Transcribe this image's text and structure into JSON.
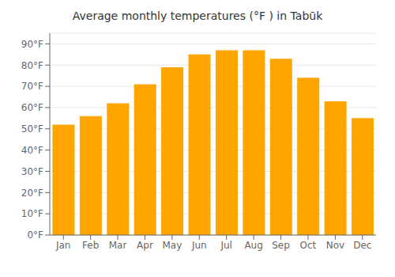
{
  "chart_data": {
    "type": "bar",
    "title": "Average monthly temperatures (°F ) in Tabūk",
    "categories": [
      "Jan",
      "Feb",
      "Mar",
      "Apr",
      "May",
      "Jun",
      "Jul",
      "Aug",
      "Sep",
      "Oct",
      "Nov",
      "Dec"
    ],
    "values": [
      52,
      56,
      62,
      71,
      79,
      85,
      87,
      87,
      83,
      74,
      63,
      55
    ],
    "color": "#FFA500",
    "ylim": [
      0,
      95
    ],
    "yticks": [
      {
        "value": 0,
        "label": "0°F"
      },
      {
        "value": 10,
        "label": "10°F"
      },
      {
        "value": 20,
        "label": "20°F"
      },
      {
        "value": 30,
        "label": "30°F"
      },
      {
        "value": 40,
        "label": "40°F"
      },
      {
        "value": 50,
        "label": "50°F"
      },
      {
        "value": 60,
        "label": "60°F"
      },
      {
        "value": 70,
        "label": "70°F"
      },
      {
        "value": 80,
        "label": "80°F"
      },
      {
        "value": 90,
        "label": "90°F"
      }
    ],
    "grid": true
  }
}
